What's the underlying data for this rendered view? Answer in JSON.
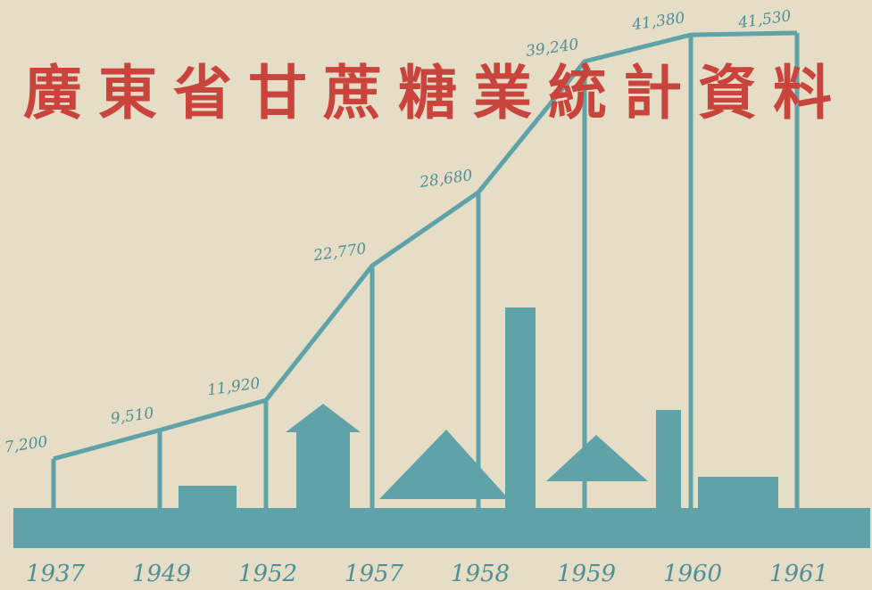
{
  "chart_data": {
    "type": "line",
    "title": "廣東省甘蔗糖業統計資料",
    "categories": [
      "1937",
      "1949",
      "1952",
      "1957",
      "1958",
      "1959",
      "1960",
      "1961"
    ],
    "values": [
      7200,
      9510,
      11920,
      22770,
      28680,
      39240,
      41380,
      41530
    ],
    "value_labels": [
      "7,200",
      "9,510",
      "11,920",
      "22,770",
      "28,680",
      "39,240",
      "41,380",
      "41,530"
    ],
    "color": "#5fa3a8",
    "title_color": "#c9443c"
  }
}
